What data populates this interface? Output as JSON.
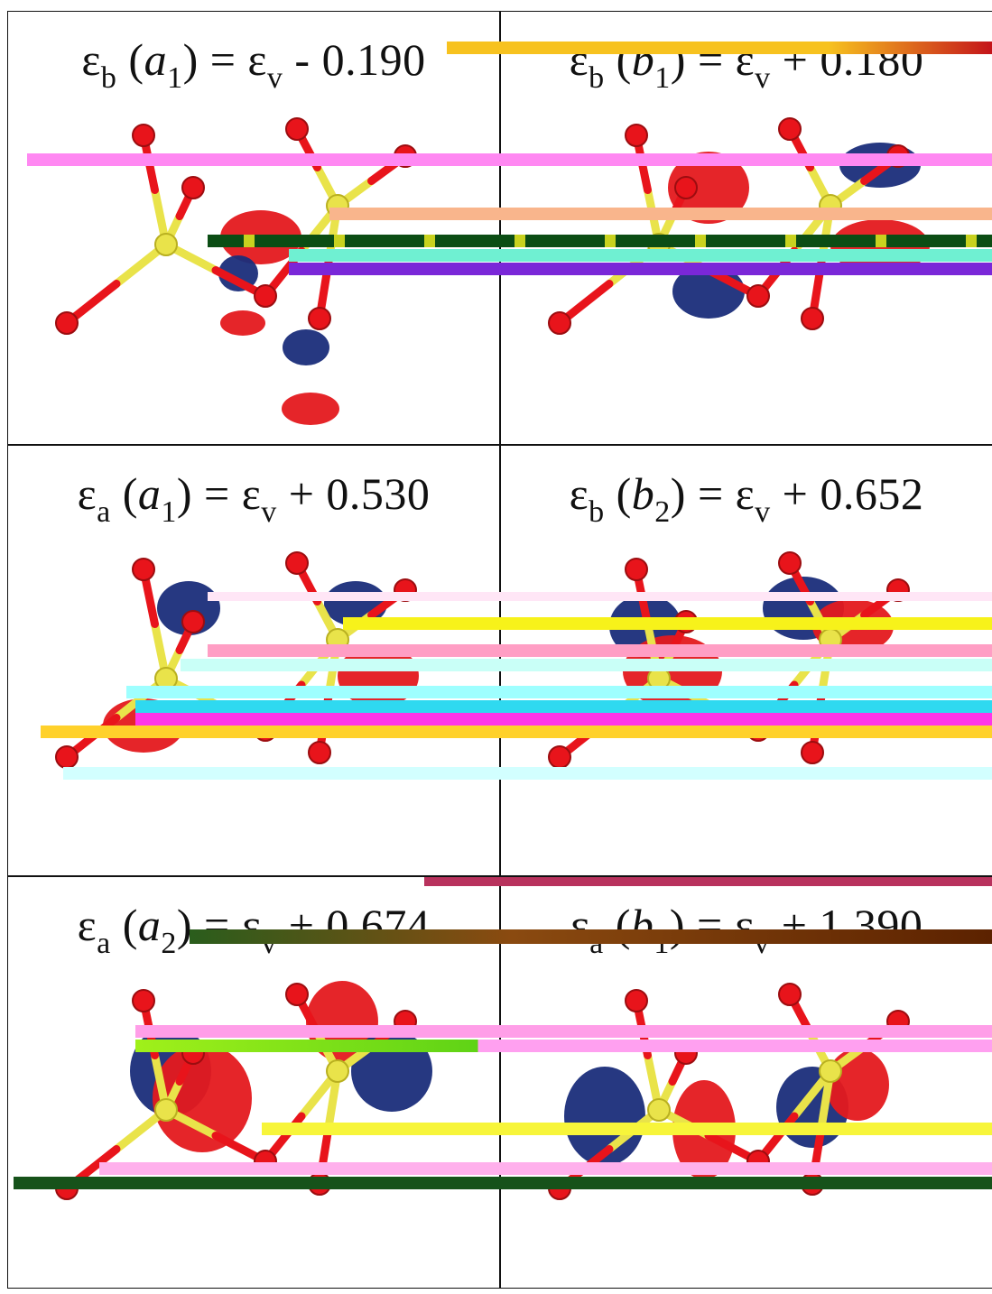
{
  "panels": [
    {
      "id": "a1-binding",
      "eps": "ε",
      "eps_sub": "b",
      "sym": "a",
      "sym_sub": "1",
      "rhs_eps": "ε",
      "rhs_sub": "v",
      "op": "-",
      "value": "0.190"
    },
    {
      "id": "b1-binding",
      "eps": "ε",
      "eps_sub": "b",
      "sym": "b",
      "sym_sub": "1",
      "rhs_eps": "ε",
      "rhs_sub": "v",
      "op": "+",
      "value": "0.180"
    },
    {
      "id": "a1-antibinding",
      "eps": "ε",
      "eps_sub": "a",
      "sym": "a",
      "sym_sub": "1",
      "rhs_eps": "ε",
      "rhs_sub": "v",
      "op": "+",
      "value": "0.530"
    },
    {
      "id": "b2-binding",
      "eps": "ε",
      "eps_sub": "b",
      "sym": "b",
      "sym_sub": "2",
      "rhs_eps": "ε",
      "rhs_sub": "v",
      "op": "+",
      "value": "0.652"
    },
    {
      "id": "a2-antibinding",
      "eps": "ε",
      "eps_sub": "a",
      "sym": "a",
      "sym_sub": "2",
      "rhs_eps": "ε",
      "rhs_sub": "v",
      "op": "+",
      "value": "0.674"
    },
    {
      "id": "b1-antibinding",
      "eps": "ε",
      "eps_sub": "a",
      "sym": "b",
      "sym_sub": "1",
      "rhs_eps": "ε",
      "rhs_sub": "v",
      "op": "+",
      "value": "1.390"
    }
  ],
  "colors": {
    "atom_red": "#e8141b",
    "bond_yellow": "#e9e34a",
    "lobe_red": "#e4191e",
    "lobe_blue": "#1a2d7a",
    "grid": "#111111"
  }
}
